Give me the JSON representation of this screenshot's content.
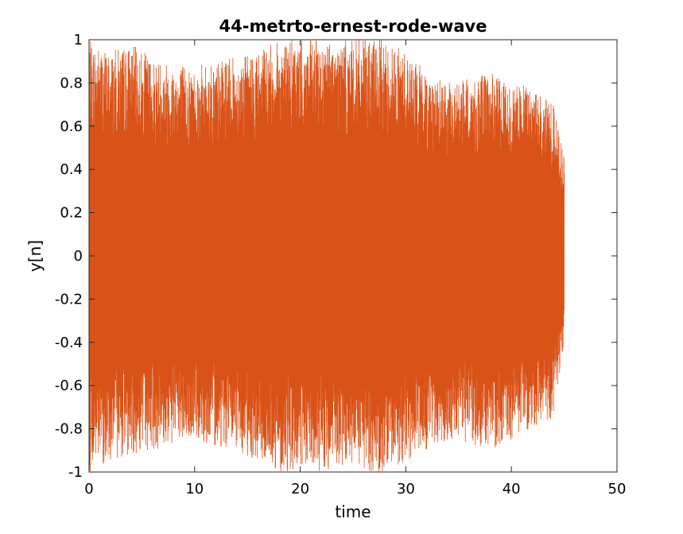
{
  "chart_data": {
    "type": "line",
    "title": "44-metrto-ernest-rode-wave",
    "xlabel": "time",
    "ylabel": "y[n]",
    "xlim": [
      0,
      50
    ],
    "ylim": [
      -1,
      1
    ],
    "x_ticks": [
      "0",
      "10",
      "20",
      "30",
      "40",
      "50"
    ],
    "y_ticks": [
      "1",
      "0.8",
      "0.6",
      "0.4",
      "0.2",
      "0",
      "-0.2",
      "-0.4",
      "-0.6",
      "-0.8",
      "-1"
    ],
    "grid": false,
    "series": [
      {
        "color": "#D95319",
        "x_range": [
          0,
          45
        ],
        "envelope": {
          "x": [
            0,
            2,
            4,
            6,
            8,
            10,
            12,
            14,
            16,
            18,
            20,
            22,
            24,
            26,
            28,
            30,
            32,
            34,
            36,
            38,
            40,
            42,
            44,
            45
          ],
          "upper": [
            1,
            0.95,
            0.98,
            0.92,
            0.9,
            0.88,
            0.9,
            0.92,
            0.95,
            1,
            1,
            1,
            1,
            1,
            1,
            0.95,
            0.85,
            0.8,
            0.82,
            0.85,
            0.8,
            0.78,
            0.7,
            0.45
          ],
          "lower": [
            -1,
            -0.95,
            -0.92,
            -0.9,
            -0.88,
            -0.85,
            -0.88,
            -0.9,
            -0.95,
            -1,
            -1,
            -1,
            -1,
            -1,
            -1,
            -0.95,
            -0.9,
            -0.85,
            -0.88,
            -0.9,
            -0.85,
            -0.8,
            -0.75,
            -0.4
          ]
        }
      }
    ]
  }
}
